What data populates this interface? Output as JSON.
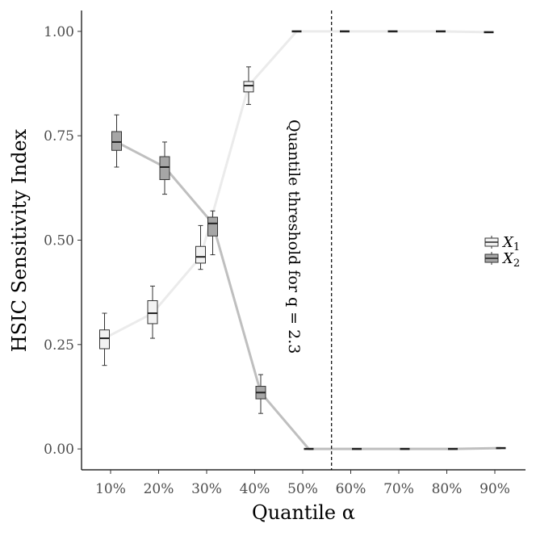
{
  "chart_data": {
    "type": "boxplot",
    "xlabel": "Quantile α",
    "ylabel": "HSIC Sensitivity Index",
    "categories": [
      "10%",
      "20%",
      "30%",
      "40%",
      "50%",
      "60%",
      "70%",
      "80%",
      "90%"
    ],
    "ylim": [
      -0.05,
      1.05
    ],
    "yticks": [
      0.0,
      0.25,
      0.5,
      0.75,
      1.0
    ],
    "ytick_labels": [
      "0.00",
      "0.25",
      "0.50",
      "0.75",
      "1.00"
    ],
    "grid": false,
    "legend_position": "right",
    "series": [
      {
        "name": "X1",
        "name_main": "X",
        "name_sub": "1",
        "fill": "#f2f2f2",
        "line_color": "#ebebeb",
        "boxes": [
          {
            "whislo": 0.2,
            "q1": 0.24,
            "med": 0.265,
            "q3": 0.285,
            "whishi": 0.325
          },
          {
            "whislo": 0.265,
            "q1": 0.3,
            "med": 0.325,
            "q3": 0.355,
            "whishi": 0.39
          },
          {
            "whislo": 0.43,
            "q1": 0.445,
            "med": 0.46,
            "q3": 0.485,
            "whishi": 0.535
          },
          {
            "whislo": 0.825,
            "q1": 0.855,
            "med": 0.87,
            "q3": 0.88,
            "whishi": 0.915
          },
          {
            "whislo": 0.999,
            "q1": 1.0,
            "med": 1.0,
            "q3": 1.0,
            "whishi": 1.0
          },
          {
            "whislo": 0.999,
            "q1": 1.0,
            "med": 1.0,
            "q3": 1.0,
            "whishi": 1.0
          },
          {
            "whislo": 0.999,
            "q1": 1.0,
            "med": 1.0,
            "q3": 1.0,
            "whishi": 1.0
          },
          {
            "whislo": 0.999,
            "q1": 1.0,
            "med": 1.0,
            "q3": 1.0,
            "whishi": 1.0
          },
          {
            "whislo": 0.997,
            "q1": 0.998,
            "med": 0.998,
            "q3": 0.999,
            "whishi": 0.999
          }
        ]
      },
      {
        "name": "X2",
        "name_main": "X",
        "name_sub": "2",
        "fill": "#a6a6a6",
        "line_color": "#bfbfbf",
        "boxes": [
          {
            "whislo": 0.675,
            "q1": 0.715,
            "med": 0.735,
            "q3": 0.76,
            "whishi": 0.8
          },
          {
            "whislo": 0.61,
            "q1": 0.645,
            "med": 0.675,
            "q3": 0.7,
            "whishi": 0.735
          },
          {
            "whislo": 0.465,
            "q1": 0.51,
            "med": 0.54,
            "q3": 0.555,
            "whishi": 0.57
          },
          {
            "whislo": 0.085,
            "q1": 0.12,
            "med": 0.135,
            "q3": 0.15,
            "whishi": 0.178
          },
          {
            "whislo": 0.0,
            "q1": 0.0,
            "med": 0.0,
            "q3": 0.0,
            "whishi": 0.001
          },
          {
            "whislo": 0.0,
            "q1": 0.0,
            "med": 0.0,
            "q3": 0.0,
            "whishi": 0.001
          },
          {
            "whislo": 0.0,
            "q1": 0.0,
            "med": 0.0,
            "q3": 0.0,
            "whishi": 0.001
          },
          {
            "whislo": 0.0,
            "q1": 0.0,
            "med": 0.0,
            "q3": 0.0,
            "whishi": 0.001
          },
          {
            "whislo": 0.001,
            "q1": 0.002,
            "med": 0.002,
            "q3": 0.003,
            "whishi": 0.003
          }
        ]
      }
    ],
    "threshold": {
      "x_category_position": 5.6,
      "label": "Quantile threshold for q = 2.3",
      "style": "dashed"
    }
  }
}
